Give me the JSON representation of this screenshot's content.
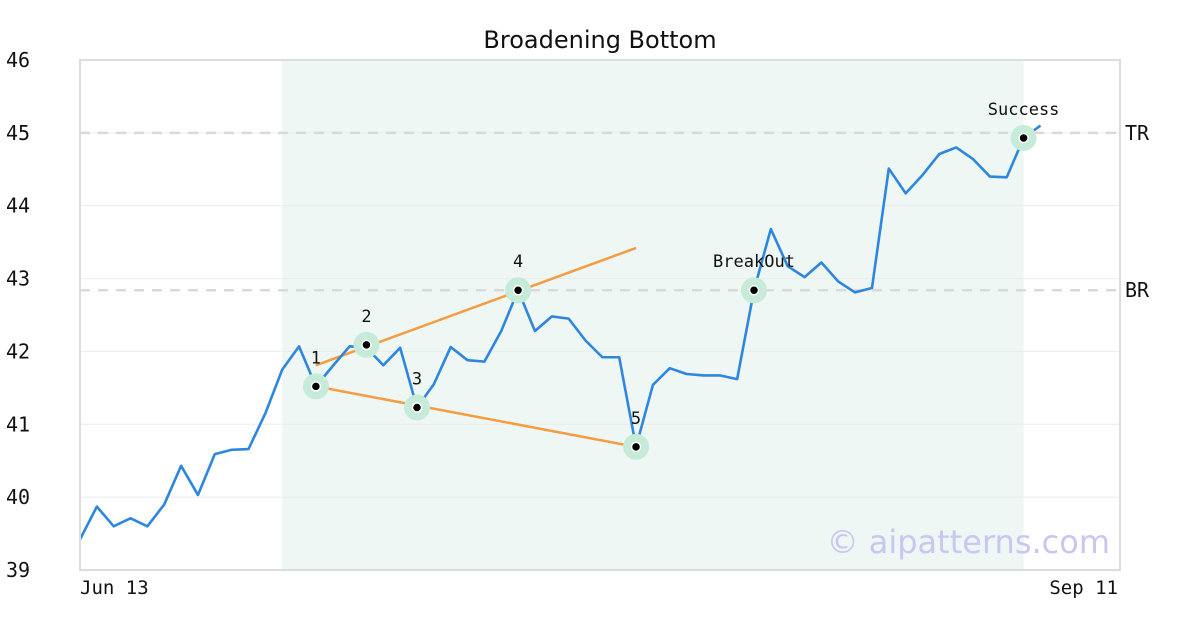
{
  "chart_data": {
    "type": "line",
    "title": "Broadening Bottom",
    "xlabel": "",
    "ylabel": "",
    "ylim": [
      39,
      46
    ],
    "yticks": [
      39,
      40,
      41,
      42,
      43,
      44,
      45,
      46
    ],
    "x_tick_labels": [
      "Jun 13",
      "Sep 11"
    ],
    "x_range": [
      "Jun 13",
      "Sep 11"
    ],
    "grid": "horizontal",
    "series": [
      {
        "color": "#2e86de",
        "values": [
          39.42,
          39.87,
          39.6,
          39.71,
          39.6,
          39.9,
          40.43,
          40.03,
          40.59,
          40.65,
          40.66,
          41.15,
          41.75,
          42.07,
          41.52,
          41.8,
          42.07,
          42.05,
          41.81,
          42.05,
          41.23,
          41.55,
          42.06,
          41.88,
          41.86,
          42.28,
          42.84,
          42.28,
          42.48,
          42.45,
          42.15,
          41.92,
          41.92,
          40.69,
          41.54,
          41.77,
          41.69,
          41.67,
          41.67,
          41.62,
          42.84,
          43.68,
          43.17,
          43.02,
          43.22,
          42.96,
          42.81,
          42.87,
          44.51,
          44.17,
          44.42,
          44.71,
          44.8,
          44.64,
          44.4,
          44.39,
          44.93,
          45.1
        ]
      }
    ],
    "highlight_region": {
      "start_index": 12,
      "end_index": 56,
      "color": "#eef7f3"
    },
    "reference_lines": [
      {
        "label": "TR",
        "value": 45.0
      },
      {
        "label": "BR",
        "value": 42.84
      }
    ],
    "trendlines": [
      {
        "color": "#f59c42",
        "from": {
          "index": 14,
          "value": 41.81
        },
        "to": {
          "index": 33,
          "value": 43.42
        }
      },
      {
        "color": "#f59c42",
        "from": {
          "index": 14,
          "value": 41.52
        },
        "to": {
          "index": 33,
          "value": 40.69
        }
      }
    ],
    "annotations": [
      {
        "label": "1",
        "index": 14,
        "value": 41.52,
        "label_pos": "above"
      },
      {
        "label": "2",
        "index": 17,
        "value": 42.09,
        "label_pos": "above"
      },
      {
        "label": "3",
        "index": 20,
        "value": 41.23,
        "label_pos": "above"
      },
      {
        "label": "4",
        "index": 26,
        "value": 42.84,
        "label_pos": "above"
      },
      {
        "label": "5",
        "index": 33,
        "value": 40.69,
        "label_pos": "above"
      },
      {
        "label": "BreakOut",
        "index": 40,
        "value": 42.84,
        "label_pos": "above"
      },
      {
        "label": "Success",
        "index": 56,
        "value": 44.93,
        "label_pos": "above"
      }
    ],
    "watermark": "© aipatterns.com"
  }
}
